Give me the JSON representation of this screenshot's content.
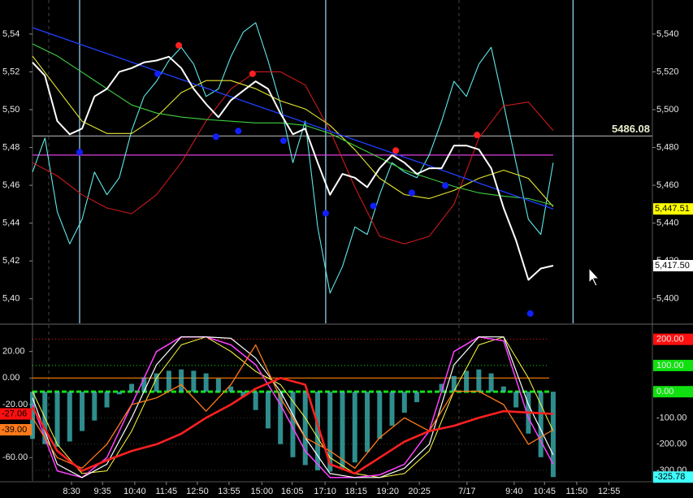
{
  "chart_data": [
    {
      "type": "line",
      "xlim": [
        0,
        100
      ],
      "ylim": [
        5387,
        5558
      ],
      "y2lim": [
        5387,
        5558
      ],
      "yticks": [
        {
          "value": 5540,
          "label": "5,54"
        },
        {
          "value": 5520,
          "label": "5,52"
        },
        {
          "value": 5500,
          "label": "5,50"
        },
        {
          "value": 5480,
          "label": "5,48"
        },
        {
          "value": 5460,
          "label": "5,46"
        },
        {
          "value": 5440,
          "label": "5,44"
        },
        {
          "value": 5420,
          "label": "5,42"
        },
        {
          "value": 5400,
          "label": "5,40"
        }
      ],
      "y2ticks": [
        {
          "value": 5540,
          "label": "5,540"
        },
        {
          "value": 5520,
          "label": "5,520"
        },
        {
          "value": 5500,
          "label": "5,500"
        },
        {
          "value": 5480,
          "label": "5,480"
        },
        {
          "value": 5460,
          "label": "5,460"
        },
        {
          "value": 5440,
          "label": "5,440"
        },
        {
          "value": 5420,
          "label": "5,420"
        },
        {
          "value": 5400,
          "label": "5,400"
        }
      ],
      "hline": 5486.08,
      "level_line": 5476,
      "level_color": "#e040e0",
      "vlines": [
        7.6,
        47.3,
        87.2
      ],
      "vline_color": "#9fdcff",
      "series": [
        {
          "color": "#5fe8e8",
          "width": 1.1,
          "x": [
            0,
            2,
            4,
            6,
            8,
            10,
            12,
            14,
            16,
            18,
            20,
            22,
            24,
            26,
            28,
            30,
            32,
            34,
            36,
            38,
            40,
            42,
            44,
            46,
            48,
            50,
            52,
            54,
            56,
            58,
            60,
            62,
            64,
            66,
            68,
            70,
            72,
            74,
            76,
            78,
            80,
            82,
            84
          ],
          "values": [
            5467,
            5485,
            5446,
            5429,
            5442,
            5467,
            5455,
            5464,
            5489,
            5507,
            5515,
            5526,
            5533,
            5524,
            5507,
            5511,
            5528,
            5541,
            5546,
            5526,
            5503,
            5472,
            5494,
            5438,
            5403,
            5417,
            5438,
            5434,
            5455,
            5472,
            5467,
            5464,
            5476,
            5494,
            5515,
            5507,
            5524,
            5533,
            5503,
            5472,
            5442,
            5434,
            5472
          ]
        },
        {
          "color": "#cc1a1a",
          "width": 1.1,
          "x": [
            0,
            4,
            8,
            12,
            16,
            20,
            24,
            28,
            32,
            36,
            40,
            44,
            48,
            52,
            56,
            60,
            64,
            68,
            72,
            76,
            80,
            84
          ],
          "values": [
            5472,
            5465,
            5455,
            5448,
            5445,
            5455,
            5472,
            5494,
            5511,
            5520,
            5520,
            5513,
            5489,
            5459,
            5433,
            5429,
            5433,
            5450,
            5485,
            5502,
            5504,
            5489
          ]
        },
        {
          "color": "#e8e830",
          "width": 1.1,
          "x": [
            0,
            4,
            8,
            12,
            16,
            20,
            24,
            28,
            32,
            36,
            40,
            44,
            48,
            52,
            56,
            60,
            64,
            68,
            72,
            76,
            80,
            84
          ],
          "values": [
            5528.4,
            5511.1,
            5493.9,
            5487.4,
            5487.4,
            5496.1,
            5509.0,
            5515.4,
            5515.4,
            5511.1,
            5504.7,
            5500.4,
            5491.7,
            5478.8,
            5463.7,
            5455.1,
            5453.0,
            5457.3,
            5463.7,
            5468.0,
            5463.7,
            5448.7
          ]
        },
        {
          "color": "#40d040",
          "width": 1.1,
          "x": [
            0,
            4,
            8,
            12,
            16,
            20,
            24,
            28,
            32,
            36,
            40,
            44,
            48,
            52,
            56,
            60,
            64,
            68,
            72,
            76,
            80,
            84
          ],
          "values": [
            5534.8,
            5528.4,
            5519.8,
            5511.1,
            5502.5,
            5498.2,
            5496.1,
            5494.8,
            5493.9,
            5493.0,
            5493.0,
            5491.7,
            5487.4,
            5481.0,
            5474.5,
            5468.0,
            5463.7,
            5459.4,
            5456.0,
            5454.3,
            5453.0,
            5449.5
          ]
        },
        {
          "color": "#2040ff",
          "width": 1.3,
          "x": [
            0,
            84
          ],
          "values": [
            5543.4,
            5447.51
          ],
          "end_label": "5,447.51",
          "end_bg": "#ffff00",
          "end_fg": "#000000",
          "end_side": "right"
        },
        {
          "color": "#ffffff",
          "width": 2,
          "x": [
            0,
            2,
            4,
            6,
            8,
            10,
            12,
            14,
            16,
            18,
            20,
            22,
            24,
            26,
            28,
            30,
            32,
            34,
            36,
            38,
            40,
            42,
            44,
            46,
            48,
            50,
            52,
            54,
            56,
            58,
            60,
            62,
            64,
            66,
            68,
            70,
            72,
            74,
            76,
            78,
            80,
            82,
            84
          ],
          "values": [
            5525,
            5518,
            5494,
            5487,
            5490,
            5507,
            5511,
            5520,
            5522,
            5525,
            5526,
            5528,
            5522,
            5511,
            5503,
            5496,
            5505,
            5510,
            5515,
            5511,
            5498,
            5487,
            5490,
            5472,
            5455,
            5466,
            5464,
            5459,
            5469,
            5476,
            5472,
            5466,
            5469,
            5469,
            5481,
            5481,
            5479,
            5469,
            5448,
            5431,
            5410,
            5416,
            5417.5
          ],
          "end_label": "5,417.50",
          "end_bg": "#ffffff",
          "end_fg": "#000000",
          "end_side": "right"
        },
        {
          "style": "points",
          "color": "#ff2020",
          "x": [
            23.6,
            35.5,
            58.6,
            71.7
          ],
          "values": [
            5534,
            5519,
            5478.4,
            5486.6
          ]
        },
        {
          "style": "points",
          "color": "#1020ff",
          "x": [
            7.6,
            20.2,
            29.6,
            33.2,
            40.5,
            47.3,
            55.0,
            61.2,
            66.6,
            80.3
          ],
          "values": [
            5477.5,
            5519,
            5485.7,
            5488.7,
            5483.6,
            5445.2,
            5449.1,
            5456,
            5459.9,
            5392.2
          ]
        }
      ]
    },
    {
      "type": "line",
      "xlim": [
        0,
        100
      ],
      "ylim": [
        -77.6,
        38.8
      ],
      "y2lim": [
        -340.5,
        248.5
      ],
      "yticks": [
        {
          "value": 20,
          "label": "20.00"
        },
        {
          "value": 0,
          "label": "0.00"
        },
        {
          "value": -20,
          "label": "-20.00"
        },
        {
          "value": -60,
          "label": "-60.00"
        }
      ],
      "y2ticks": [
        {
          "value": 200,
          "label": "200.00"
        },
        {
          "value": 100,
          "label": "100.00"
        },
        {
          "value": 0,
          "label": "0.00"
        },
        {
          "value": -100,
          "label": "-100.00"
        },
        {
          "value": -200,
          "label": "-200.00"
        },
        {
          "value": -300,
          "label": "-300.00"
        }
      ],
      "y2tick_colors": [
        "#ff1010",
        "#10e010",
        "#10e010",
        "#000000",
        "#000000",
        "#000000"
      ],
      "zero_line": 0,
      "zero_color": "#ff8000",
      "xticks": [
        {
          "value": 6.3,
          "label": "8:30"
        },
        {
          "value": 11.3,
          "label": "9:35"
        },
        {
          "value": 16.5,
          "label": "10:40"
        },
        {
          "value": 21.6,
          "label": "11:45"
        },
        {
          "value": 26.6,
          "label": "12:50"
        },
        {
          "value": 31.7,
          "label": "13:55"
        },
        {
          "value": 37.0,
          "label": "15:00"
        },
        {
          "value": 41.9,
          "label": "16:05"
        },
        {
          "value": 47.2,
          "label": "17:10"
        },
        {
          "value": 52.2,
          "label": "18:15"
        },
        {
          "value": 57.3,
          "label": "19:20"
        },
        {
          "value": 62.4,
          "label": "20:25"
        },
        {
          "value": 70.1,
          "label": "7/17"
        },
        {
          "value": 77.7,
          "label": "9:40"
        },
        {
          "value": 82.6,
          "label": "10:45"
        },
        {
          "value": 87.8,
          "label": "11:50"
        },
        {
          "value": 93.0,
          "label": "12:55"
        }
      ],
      "series": [
        {
          "style": "histogram",
          "axis": "y2",
          "color": "#3fbcbc",
          "x": [
            0,
            2,
            4,
            6,
            8,
            10,
            12,
            14,
            16,
            18,
            20,
            22,
            24,
            26,
            28,
            30,
            32,
            34,
            36,
            38,
            40,
            42,
            44,
            46,
            48,
            50,
            52,
            54,
            56,
            58,
            60,
            62,
            64,
            66,
            68,
            70,
            72,
            74,
            76,
            78,
            80,
            82,
            84
          ],
          "values": [
            -180,
            -200,
            -210,
            -190,
            -150,
            -110,
            -60,
            -10,
            30,
            55,
            70,
            80,
            85,
            80,
            70,
            50,
            20,
            -20,
            -70,
            -140,
            -200,
            -250,
            -280,
            -300,
            -305,
            -295,
            -270,
            -230,
            -180,
            -130,
            -80,
            -40,
            0,
            30,
            60,
            80,
            85,
            70,
            20,
            -60,
            -160,
            -250,
            -325.78
          ],
          "end_label": "-325.78",
          "end_bg": "#40ffff",
          "end_fg": "#000000",
          "end_side": "right"
        },
        {
          "color": "#ffff40",
          "width": 1,
          "x": [
            0,
            4,
            8,
            12,
            16,
            20,
            24,
            28,
            32,
            36,
            40,
            44,
            48,
            52,
            56,
            60,
            64,
            68,
            72,
            76,
            80,
            84
          ],
          "values": [
            -10,
            -50,
            -72,
            -70,
            -40,
            0,
            25,
            31,
            20,
            5,
            -5,
            -30,
            -60,
            -72,
            -75,
            -72,
            -55,
            -10,
            25,
            31,
            0,
            -40
          ]
        },
        {
          "color": "#ff40ff",
          "width": 1.5,
          "x": [
            0,
            4,
            8,
            12,
            16,
            20,
            24,
            28,
            32,
            36,
            40,
            44,
            48,
            52,
            56,
            60,
            64,
            68,
            72,
            76,
            80,
            84
          ],
          "values": [
            -20,
            -70,
            -75,
            -60,
            -20,
            20,
            31,
            31,
            25,
            10,
            -20,
            -55,
            -75,
            -75,
            -73,
            -65,
            -40,
            20,
            31,
            28,
            -30,
            -65
          ]
        },
        {
          "color": "#ffffff",
          "width": 1.2,
          "x": [
            0,
            4,
            8,
            12,
            16,
            20,
            24,
            28,
            32,
            36,
            40,
            44,
            48,
            52,
            56,
            60,
            64,
            68,
            72,
            76,
            80,
            84
          ],
          "values": [
            -15,
            -65,
            -75,
            -65,
            -30,
            10,
            31,
            31,
            30,
            15,
            -10,
            -45,
            -72,
            -75,
            -75,
            -68,
            -50,
            10,
            31,
            31,
            -20,
            -58
          ]
        },
        {
          "color": "#ff7a1a",
          "width": 1.3,
          "x": [
            0,
            4,
            8,
            12,
            16,
            20,
            24,
            28,
            32,
            36,
            40,
            44,
            48,
            52,
            56,
            60,
            64,
            68,
            72,
            76,
            80,
            84
          ],
          "values": [
            -30,
            -60,
            -68,
            -50,
            -20,
            -15,
            -5,
            -25,
            -5,
            25,
            -15,
            -45,
            -55,
            -68,
            -45,
            -30,
            -40,
            -10,
            -10,
            -20,
            -50,
            -39
          ],
          "end_label": "-39.00",
          "end_bg": "#ff7a1a",
          "end_fg": "#000000",
          "end_side": "left"
        },
        {
          "color": "#ff2020",
          "width": 2.6,
          "x": [
            0,
            4,
            8,
            12,
            16,
            20,
            24,
            28,
            32,
            36,
            40,
            44,
            48,
            52,
            56,
            60,
            64,
            68,
            72,
            76,
            80,
            84
          ],
          "values": [
            -22,
            -55,
            -70,
            -62,
            -55,
            -50,
            -42,
            -30,
            -20,
            -8,
            0,
            -5,
            -65,
            -72,
            -60,
            -48,
            -40,
            -36,
            -30,
            -25,
            -26,
            -27.06
          ],
          "end_label": "-27.06",
          "end_bg": "#ff1010",
          "end_fg": "#000000",
          "end_side": "left"
        }
      ]
    }
  ]
}
